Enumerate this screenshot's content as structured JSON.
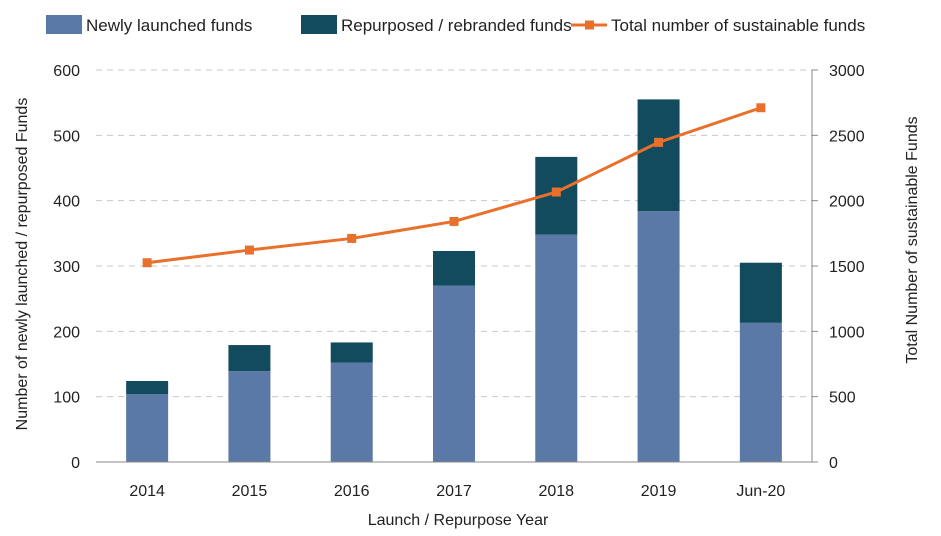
{
  "chart_data": {
    "type": "bar",
    "stacked": true,
    "categories": [
      "2014",
      "2015",
      "2016",
      "2017",
      "2018",
      "2019",
      "Jun-20"
    ],
    "series": [
      {
        "name": "Newly launched funds",
        "type": "bar",
        "axis": "left",
        "color": "#5b79a6",
        "values": [
          104,
          139,
          152,
          270,
          348,
          384,
          213
        ]
      },
      {
        "name": "Repurposed / rebranded funds",
        "type": "bar",
        "axis": "left",
        "color": "#124b5d",
        "values": [
          20,
          40,
          31,
          53,
          119,
          171,
          92
        ]
      },
      {
        "name": "Total number of sustainable funds",
        "type": "line",
        "axis": "right",
        "color": "#e8702a",
        "marker": "square",
        "values": [
          1525,
          1622,
          1711,
          1841,
          2066,
          2446,
          2711
        ]
      }
    ],
    "xlabel": "Launch / Repurpose Year",
    "ylabel": "Number of newly launched / repurposed Funds",
    "y2label": "Total Number of sustainable Funds",
    "ylim": [
      0,
      600
    ],
    "y2lim": [
      0,
      3000
    ],
    "yticks": [
      "0",
      "100",
      "200",
      "300",
      "400",
      "500",
      "600"
    ],
    "y2ticks": [
      "0",
      "500",
      "1000",
      "1500",
      "2000",
      "2500",
      "3000"
    ],
    "grid": "horizontal-dashed",
    "legend": "top"
  }
}
